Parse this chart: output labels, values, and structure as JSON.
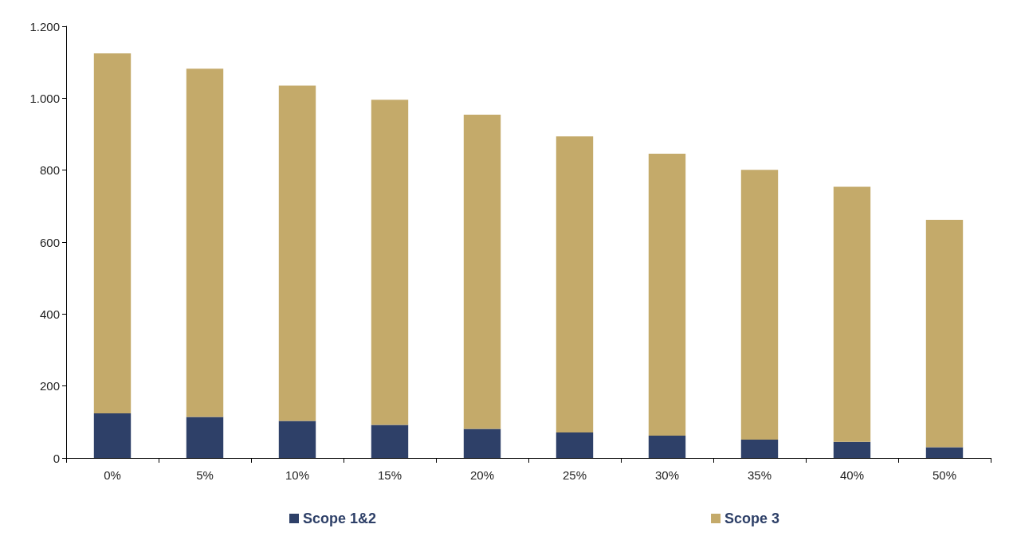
{
  "chart_data": {
    "type": "bar",
    "stacked": true,
    "categories": [
      "0%",
      "5%",
      "10%",
      "15%",
      "20%",
      "25%",
      "30%",
      "35%",
      "40%",
      "50%"
    ],
    "series": [
      {
        "name": "Scope 1&2",
        "color": "#2e4068",
        "values": [
          124,
          114,
          103,
          92,
          81,
          71,
          62,
          51,
          45,
          30
        ]
      },
      {
        "name": "Scope 3",
        "color": "#c4aa6a",
        "values": [
          1001,
          968,
          932,
          904,
          873,
          823,
          784,
          750,
          709,
          632
        ]
      }
    ],
    "ylim": [
      0,
      1200
    ],
    "yticks": [
      0,
      200,
      400,
      600,
      800,
      {
        "value": 1000,
        "label": "1.000"
      },
      {
        "value": 1200,
        "label": "1.200"
      }
    ],
    "grid": false,
    "legend": "bottom"
  }
}
